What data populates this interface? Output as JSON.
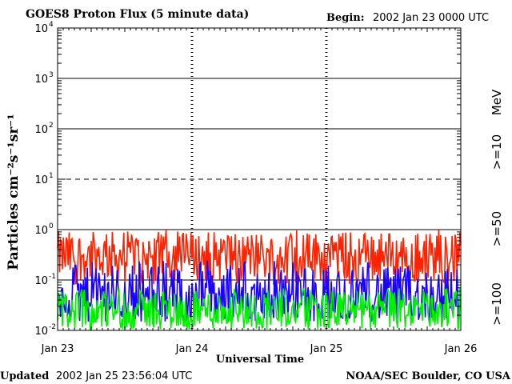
{
  "chart_data": {
    "type": "line",
    "title": "GOES8 Proton Flux (5 minute data)",
    "begin_label": "Begin:",
    "begin_value": "2002 Jan 23 0000 UTC",
    "xlabel": "Universal Time",
    "ylabel": "Particles cm⁻²s⁻¹sr⁻¹",
    "yscale": "log",
    "ylim": [
      0.01,
      10000
    ],
    "y_ticks": [
      {
        "base": "10",
        "exp": "-2"
      },
      {
        "base": "10",
        "exp": "-1"
      },
      {
        "base": "10",
        "exp": "0"
      },
      {
        "base": "10",
        "exp": "1"
      },
      {
        "base": "10",
        "exp": "2"
      },
      {
        "base": "10",
        "exp": "3"
      },
      {
        "base": "10",
        "exp": "4"
      }
    ],
    "x_ticks": [
      "Jan 23",
      "Jan 24",
      "Jan 25",
      "Jan 26"
    ],
    "xlim_days": [
      0,
      3
    ],
    "reference_lines": [
      {
        "value": 10,
        "style": "dashed"
      },
      {
        "value": 100,
        "style": "solid"
      },
      {
        "value": 1000,
        "style": "solid"
      },
      {
        "value": 1,
        "style": "solid"
      },
      {
        "value": 0.1,
        "style": "solid"
      }
    ],
    "units_label": "MeV",
    "series": [
      {
        "name": ">=10",
        "color": "#ff2200",
        "typical_range": [
          0.08,
          1.0
        ],
        "median": 0.3
      },
      {
        "name": ">=50",
        "color": "#1a00ff",
        "typical_range": [
          0.015,
          0.25
        ],
        "median": 0.05
      },
      {
        "name": ">=100",
        "color": "#00ee00",
        "typical_range": [
          0.01,
          0.07
        ],
        "median": 0.025
      }
    ]
  },
  "footer": {
    "updated_label": "Updated",
    "updated_value": "2002 Jan 25 23:56:04 UTC",
    "credit": "NOAA/SEC Boulder, CO USA"
  }
}
